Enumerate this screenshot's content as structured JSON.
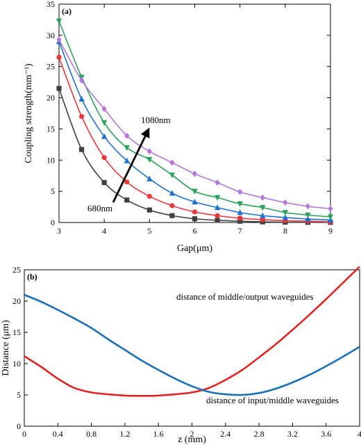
{
  "chart_data": [
    {
      "panel_label": "(a)",
      "type": "scatter",
      "xlabel": "Gap(μm)",
      "ylabel": "Coupling strength(mm⁻¹)",
      "xlim": [
        3,
        9
      ],
      "ylim": [
        0,
        35
      ],
      "xticks": [
        "3",
        "4",
        "5",
        "6",
        "7",
        "8",
        "9"
      ],
      "yticks": [
        "0",
        "5",
        "10",
        "15",
        "20",
        "25",
        "30",
        "35"
      ],
      "grid": false,
      "annotations": {
        "low_label": "680nm",
        "high_label": "1080nm"
      },
      "x": [
        3.0,
        3.5,
        4.0,
        4.5,
        5.0,
        5.5,
        6.0,
        6.5,
        7.0,
        7.5,
        8.0,
        8.5,
        9.0
      ],
      "series": [
        {
          "marker": "square",
          "color": "#404040",
          "values": [
            21.5,
            11.7,
            6.4,
            3.6,
            2.0,
            1.1,
            0.6,
            0.35,
            0.2,
            0.1,
            0.05,
            0.03,
            0.02
          ]
        },
        {
          "marker": "circle",
          "color": "#e8363a",
          "values": [
            26.5,
            17.0,
            10.4,
            6.5,
            4.2,
            2.7,
            1.7,
            1.1,
            0.7,
            0.45,
            0.3,
            0.2,
            0.1
          ]
        },
        {
          "marker": "triangle-up",
          "color": "#1f6fd1",
          "values": [
            29.0,
            19.8,
            13.8,
            9.9,
            7.0,
            4.7,
            3.3,
            2.4,
            1.6,
            1.1,
            0.8,
            0.55,
            0.4
          ]
        },
        {
          "marker": "triangle-down",
          "color": "#2aa05a",
          "values": [
            32.3,
            23.3,
            16.0,
            12.0,
            10.1,
            7.6,
            5.0,
            4.0,
            3.0,
            2.4,
            1.6,
            1.2,
            0.9
          ]
        },
        {
          "marker": "diamond",
          "color": "#b278d8",
          "values": [
            29.3,
            22.8,
            18.2,
            13.9,
            11.4,
            9.6,
            7.8,
            6.4,
            4.9,
            4.0,
            3.2,
            2.6,
            2.2
          ]
        }
      ]
    },
    {
      "panel_label": "(b)",
      "type": "line",
      "xlabel": "z (mm)",
      "ylabel": "Distance (μm)",
      "xlim": [
        0,
        4
      ],
      "ylim": [
        0,
        25
      ],
      "xticks": [
        "0",
        "0.4",
        "0.8",
        "1.2",
        "1.6",
        "2",
        "2.4",
        "2.8",
        "3.2",
        "3.6",
        "4"
      ],
      "yticks": [
        "0",
        "5",
        "10",
        "15",
        "20",
        "25"
      ],
      "grid": false,
      "series": [
        {
          "name": "distance of middle/output waveguides",
          "color": "#e02424",
          "x": [
            0,
            0.2,
            0.4,
            0.6,
            0.8,
            1.0,
            1.2,
            1.4,
            1.6,
            1.8,
            2.0,
            2.2,
            2.4,
            2.6,
            2.8,
            3.0,
            3.2,
            3.4,
            3.6,
            3.8,
            4.0
          ],
          "values": [
            11.2,
            9.5,
            7.6,
            6.1,
            5.4,
            5.1,
            4.9,
            4.85,
            4.9,
            5.1,
            5.4,
            6.1,
            7.4,
            9.0,
            11.0,
            13.1,
            15.4,
            17.8,
            20.3,
            22.9,
            25.5
          ]
        },
        {
          "name": "distance of input/middle waveguides",
          "color": "#1a6fb5",
          "x": [
            0,
            0.2,
            0.4,
            0.6,
            0.8,
            1.0,
            1.2,
            1.4,
            1.6,
            1.8,
            2.0,
            2.2,
            2.4,
            2.6,
            2.8,
            3.0,
            3.2,
            3.4,
            3.6,
            3.8,
            4.0
          ],
          "values": [
            21.0,
            19.9,
            18.6,
            17.2,
            15.7,
            13.9,
            12.2,
            10.5,
            9.0,
            7.6,
            6.4,
            5.5,
            5.1,
            5.0,
            5.3,
            6.0,
            7.0,
            8.2,
            9.6,
            11.1,
            12.7
          ]
        }
      ]
    }
  ]
}
